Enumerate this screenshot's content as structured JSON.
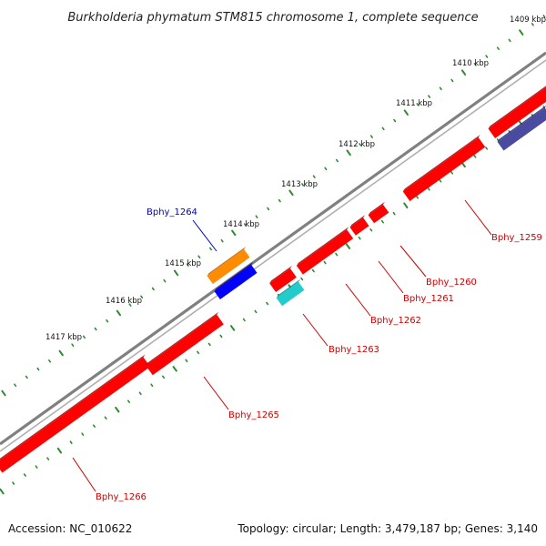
{
  "title": "Burkholderia phymatum STM815 chromosome 1, complete sequence",
  "accession": "Accession: NC_010622",
  "topology": "Topology: circular; Length: 3,479,187 bp; Genes: 3,140",
  "ticks": [
    {
      "label": "1409 kbp"
    },
    {
      "label": "1410 kbp"
    },
    {
      "label": "1411 kbp"
    },
    {
      "label": "1412 kbp"
    },
    {
      "label": "1413 kbp"
    },
    {
      "label": "1414 kbp"
    },
    {
      "label": "1415 kbp"
    },
    {
      "label": "1416 kbp"
    },
    {
      "label": "1417 kbp"
    }
  ],
  "genes": [
    {
      "name": "Bphy_1259",
      "color": "#cc0000"
    },
    {
      "name": "Bphy_1260",
      "color": "#cc0000"
    },
    {
      "name": "Bphy_1261",
      "color": "#cc0000"
    },
    {
      "name": "Bphy_1262",
      "color": "#cc0000"
    },
    {
      "name": "Bphy_1263",
      "color": "#cc0000"
    },
    {
      "name": "Bphy_1264",
      "color": "#0000cc"
    },
    {
      "name": "Bphy_1265",
      "color": "#cc0000"
    },
    {
      "name": "Bphy_1266",
      "color": "#cc0000"
    }
  ],
  "colors": {
    "backbone": "#808080",
    "outer_ticks": "#2e8b2e",
    "inner_ticks": "#2e8b2e",
    "forward_genes": "#ff0000",
    "reverse_genes": "#ff0000",
    "orange_feature": "#ff8c00",
    "blue_feature": "#0000ff",
    "cyan_feature": "#22cccc",
    "navy_feature": "#4a4aa0"
  }
}
